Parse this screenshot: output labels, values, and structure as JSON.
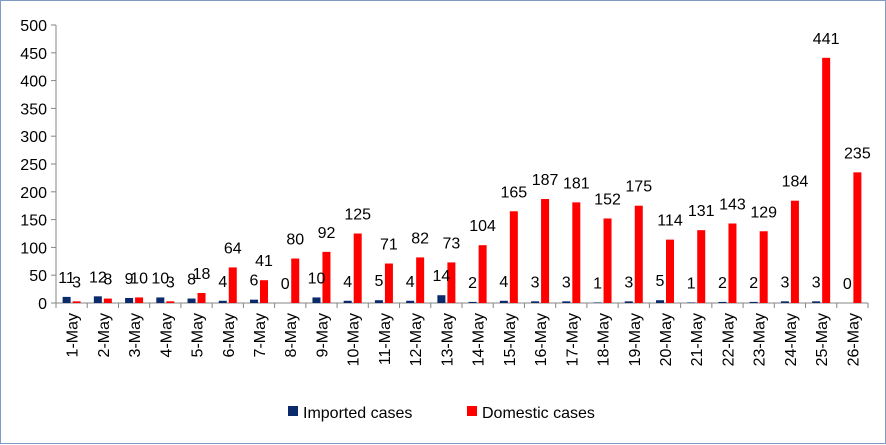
{
  "chart_data": {
    "type": "bar",
    "title": "",
    "xlabel": "",
    "ylabel": "",
    "ylim": [
      0,
      500
    ],
    "yticks": [
      0,
      50,
      100,
      150,
      200,
      250,
      300,
      350,
      400,
      450,
      500
    ],
    "categories": [
      "1-May",
      "2-May",
      "3-May",
      "4-May",
      "5-May",
      "6-May",
      "7-May",
      "8-May",
      "9-May",
      "10-May",
      "11-May",
      "12-May",
      "13-May",
      "14-May",
      "15-May",
      "16-May",
      "17-May",
      "18-May",
      "19-May",
      "20-May",
      "21-May",
      "22-May",
      "23-May",
      "24-May",
      "25-May",
      "26-May"
    ],
    "series": [
      {
        "name": "Imported cases",
        "color": "#0b2a6b",
        "values": [
          11,
          12,
          9,
          10,
          8,
          4,
          6,
          0,
          10,
          4,
          5,
          4,
          14,
          2,
          4,
          3,
          3,
          1,
          3,
          5,
          1,
          2,
          2,
          3,
          3,
          0
        ]
      },
      {
        "name": "Domestic cases",
        "color": "#ff0000",
        "values": [
          3,
          8,
          10,
          3,
          18,
          64,
          41,
          80,
          92,
          125,
          71,
          82,
          73,
          104,
          165,
          187,
          181,
          152,
          175,
          114,
          131,
          143,
          129,
          184,
          441,
          235
        ]
      }
    ],
    "legend_position": "bottom",
    "grid": false
  }
}
